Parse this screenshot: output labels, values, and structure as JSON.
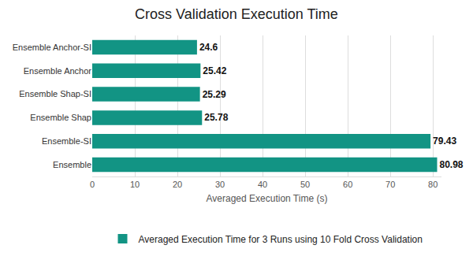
{
  "chart_data": {
    "type": "bar",
    "orientation": "horizontal",
    "title": "Cross Validation Execution Time",
    "x_label": "Averaged Execution Time (s)",
    "categories": [
      "Ensemble Anchor-SI",
      "Ensemble Anchor",
      "Ensemble Shap-SI",
      "Ensemble Shap",
      "Ensemble-SI",
      "Ensemble"
    ],
    "series": [
      {
        "name": "Averaged Execution Time for 3 Runs using 10 Fold Cross Validation",
        "color": "#129484",
        "values": [
          24.6,
          25.42,
          25.29,
          25.78,
          79.43,
          80.98
        ]
      }
    ],
    "xlim": [
      0,
      82
    ],
    "xticks": [
      0,
      10,
      20,
      30,
      40,
      50,
      60,
      70,
      80
    ],
    "grid": true,
    "data_labels": true,
    "legend": "bottom"
  }
}
